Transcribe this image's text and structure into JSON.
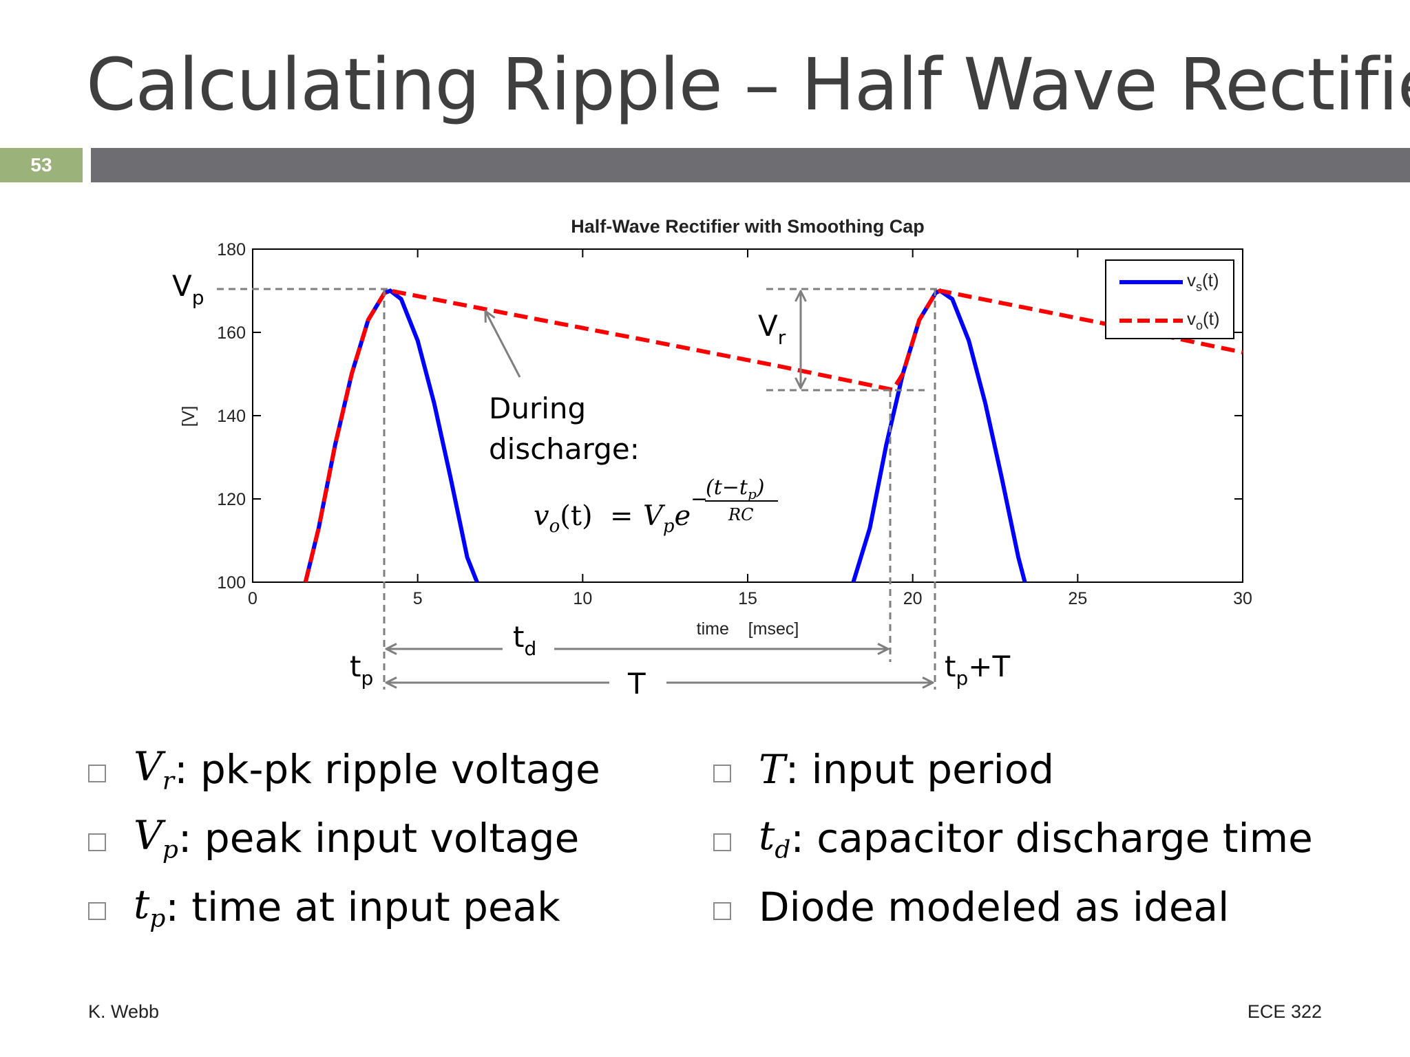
{
  "slide": {
    "title": "Calculating Ripple – Half Wave Rectifier",
    "number": "53",
    "footer_left": "K. Webb",
    "footer_right": "ECE 322"
  },
  "annotations": {
    "vp": {
      "main": "V",
      "sub": "p"
    },
    "vr": {
      "main": "V",
      "sub": "r"
    },
    "td": {
      "main": "t",
      "sub": "d"
    },
    "tp": {
      "main": "t",
      "sub": "p"
    },
    "tpT": {
      "main": "t",
      "sub": "p",
      "suffix": "+T"
    },
    "period": "T",
    "discharge_line1": "During",
    "discharge_line2": "discharge:",
    "formula": {
      "lhs_v": "v",
      "lhs_sub": "o",
      "lhs_arg": "(t)",
      "eq": "=",
      "rhs_v": "V",
      "rhs_sub": "p",
      "e": "e",
      "minus": "−",
      "num": "(t−t",
      "num_sub": "p",
      "num_close": ")",
      "den": "RC"
    }
  },
  "bullets_left": [
    {
      "sym": "V",
      "sub": "r",
      "text": ": pk-pk ripple voltage"
    },
    {
      "sym": "V",
      "sub": "p",
      "text": ": peak input voltage"
    },
    {
      "sym": "t",
      "sub": "p",
      "text": ": time at input peak"
    }
  ],
  "bullets_right": [
    {
      "sym": "T",
      "sub": "",
      "text": ": input period"
    },
    {
      "sym": "t",
      "sub": "d",
      "text": ": capacitor discharge time"
    },
    {
      "sym": "",
      "sub": "",
      "text": "Diode modeled as ideal"
    }
  ],
  "chart_data": {
    "type": "line",
    "title": "Half-Wave Rectifier with Smoothing Cap",
    "xlabel": "time    [msec]",
    "ylabel": "[V]",
    "xlim": [
      0,
      30
    ],
    "ylim": [
      100,
      180
    ],
    "xticks": [
      0,
      5,
      10,
      15,
      20,
      25,
      30
    ],
    "yticks": [
      100,
      120,
      140,
      160,
      180
    ],
    "legend_position": "top-right",
    "series": [
      {
        "name": "v",
        "name_sub": "s",
        "name_suffix": "(t)",
        "style": "solid",
        "color": "#0000ff",
        "x": [
          1.6,
          2.0,
          2.5,
          3.0,
          3.5,
          4.0,
          4.17,
          4.5,
          5.0,
          5.5,
          6.0,
          6.5,
          6.8,
          18.2,
          18.7,
          19.2,
          19.7,
          20.2,
          20.7,
          20.83,
          21.2,
          21.7,
          22.2,
          22.7,
          23.2,
          23.4
        ],
        "y": [
          100,
          113,
          133,
          150,
          163,
          169.5,
          170,
          168,
          158,
          143,
          125,
          106,
          100,
          100,
          113,
          133,
          150,
          163,
          169.5,
          170,
          168,
          158,
          143,
          125,
          106,
          100
        ]
      },
      {
        "name": "v",
        "name_sub": "o",
        "name_suffix": "(t)",
        "style": "dashed",
        "color": "#ff0000",
        "x": [
          1.6,
          2.0,
          2.5,
          3.0,
          3.5,
          4.0,
          4.17,
          8.0,
          12.0,
          16.0,
          19.4,
          19.7,
          20.2,
          20.7,
          20.83,
          24.0,
          27.0,
          30.0
        ],
        "y": [
          100,
          113,
          133,
          150,
          163,
          169.5,
          170,
          164.1,
          158.0,
          151.8,
          146.2,
          150,
          163,
          169.5,
          170,
          165.0,
          160.2,
          155.2
        ]
      }
    ]
  }
}
